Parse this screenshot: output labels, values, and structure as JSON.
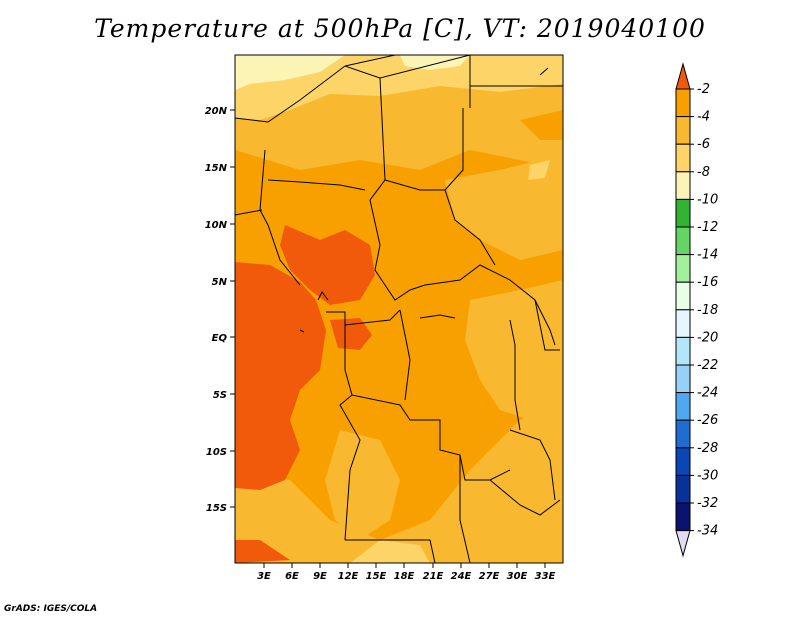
{
  "title": "Temperature at 500hPa [C], VT: 2019040100",
  "credit": "GrADS: IGES/COLA",
  "map": {
    "lat_labels": [
      "20N",
      "15N",
      "10N",
      "5N",
      "EQ",
      "5S",
      "10S",
      "15S"
    ],
    "lon_labels": [
      "3E",
      "6E",
      "9E",
      "12E",
      "15E",
      "18E",
      "21E",
      "24E",
      "27E",
      "30E",
      "33E"
    ]
  },
  "colorbar": {
    "labels": [
      "-2",
      "-4",
      "-6",
      "-8",
      "-10",
      "-12",
      "-14",
      "-16",
      "-18",
      "-20",
      "-22",
      "-24",
      "-26",
      "-28",
      "-30",
      "-32",
      "-34"
    ],
    "colors": [
      "#f05a0a",
      "#f8a000",
      "#f8b830",
      "#fcd468",
      "#fcf4b4",
      "#32b432",
      "#64d464",
      "#a0f09c",
      "#e6ffe6",
      "#e6f6ff",
      "#b4e6fa",
      "#96d2f8",
      "#50a8f0",
      "#1e6ed2",
      "#0a46b4",
      "#06329a",
      "#0a1470",
      "#e0dcf8"
    ]
  }
}
